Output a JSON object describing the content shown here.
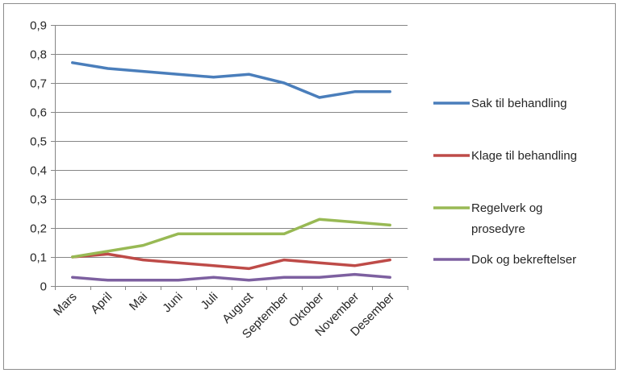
{
  "chart_data": {
    "type": "line",
    "title": "",
    "xlabel": "",
    "ylabel": "",
    "categories": [
      "Mars",
      "April",
      "Mai",
      "Juni",
      "Juli",
      "August",
      "September",
      "Oktober",
      "November",
      "Desember"
    ],
    "ylim": [
      0,
      0.9
    ],
    "yticks": [
      "0",
      "0,1",
      "0,2",
      "0,3",
      "0,4",
      "0,5",
      "0,6",
      "0,7",
      "0,8",
      "0,9"
    ],
    "grid": "horizontal",
    "legend_position": "right",
    "series": [
      {
        "name": "Sak til behandling",
        "color": "#4a7ebb",
        "legend_lines": [
          "Sak til behandling"
        ],
        "values": [
          0.77,
          0.75,
          0.74,
          0.73,
          0.72,
          0.73,
          0.7,
          0.65,
          0.67,
          0.67
        ]
      },
      {
        "name": "Klage til behandling",
        "color": "#be4b48",
        "legend_lines": [
          "Klage til behandling"
        ],
        "values": [
          0.1,
          0.11,
          0.09,
          0.08,
          0.07,
          0.06,
          0.09,
          0.08,
          0.07,
          0.09
        ]
      },
      {
        "name": "Regelverk og prosedyre",
        "color": "#98b954",
        "legend_lines": [
          "Regelverk og",
          "prosedyre"
        ],
        "values": [
          0.1,
          0.12,
          0.14,
          0.18,
          0.18,
          0.18,
          0.18,
          0.23,
          0.22,
          0.21
        ]
      },
      {
        "name": "Dok og bekreftelser",
        "color": "#7d60a0",
        "legend_lines": [
          "Dok og bekreftelser"
        ],
        "values": [
          0.03,
          0.02,
          0.02,
          0.02,
          0.03,
          0.02,
          0.03,
          0.03,
          0.04,
          0.03
        ]
      }
    ]
  }
}
